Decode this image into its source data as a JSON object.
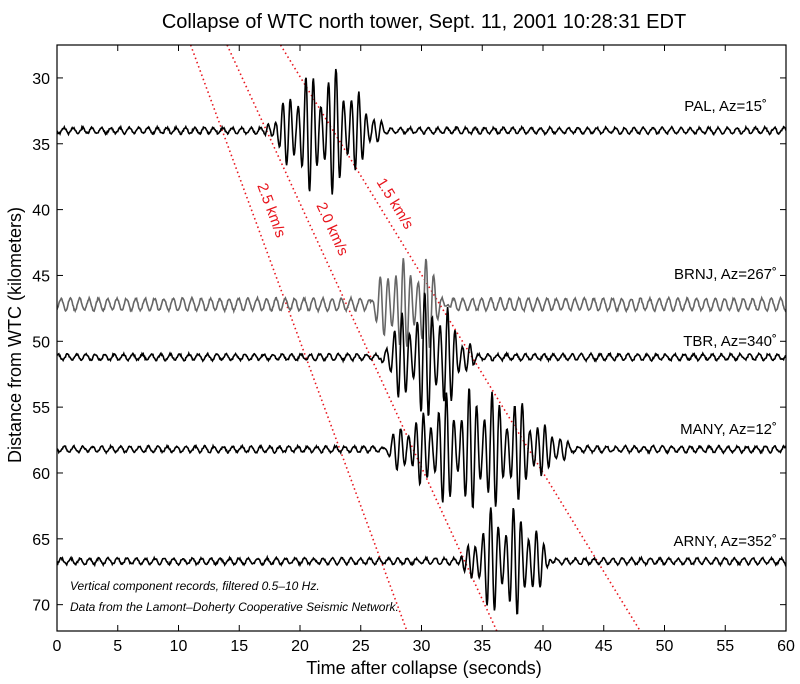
{
  "chart_data": {
    "type": "line",
    "title": "Collapse of WTC north tower, Sept. 11, 2001 10:28:31 EDT",
    "xlabel": "Time after collapse (seconds)",
    "ylabel": "Distance from WTC (kilometers)",
    "xlim": [
      0,
      60
    ],
    "ylim": [
      72,
      27.5
    ],
    "y_inverted": true,
    "grid": false,
    "xticks": [
      0,
      5,
      10,
      15,
      20,
      25,
      30,
      35,
      40,
      45,
      50,
      55,
      60
    ],
    "yticks": [
      30,
      35,
      40,
      45,
      50,
      55,
      60,
      65,
      70
    ],
    "traces": [
      {
        "label": "PAL, Az=15˚",
        "station": "PAL",
        "azimuth_deg": 15,
        "distance_km": 34.0,
        "color": "#000000",
        "arrival_s": 17.0,
        "duration_s": 10.0,
        "peak_km": 5.0
      },
      {
        "label": "BRNJ, Az=267˚",
        "station": "BRNJ",
        "azimuth_deg": 267,
        "distance_km": 47.2,
        "color": "#666666",
        "arrival_s": 25.5,
        "duration_s": 7.0,
        "peak_km": 4.0
      },
      {
        "label": "TBR, Az=340˚",
        "station": "TBR",
        "azimuth_deg": 340,
        "distance_km": 51.2,
        "color": "#000000",
        "arrival_s": 26.5,
        "duration_s": 8.0,
        "peak_km": 5.0
      },
      {
        "label": "MANY, Az=12˚",
        "station": "MANY",
        "azimuth_deg": 12,
        "distance_km": 58.2,
        "color": "#000000",
        "arrival_s": 26.5,
        "duration_s": 16.0,
        "peak_km": 4.8
      },
      {
        "label": "ARNY, Az=352˚",
        "station": "ARNY",
        "azimuth_deg": 352,
        "distance_km": 66.7,
        "color": "#000000",
        "arrival_s": 33.0,
        "duration_s": 8.0,
        "peak_km": 4.5
      }
    ],
    "velocity_lines": [
      {
        "label": "2.5 km/s",
        "speed_km_s": 2.5,
        "x_at_top": 11.0,
        "x_at_bottom": 28.8,
        "color": "#e8141c"
      },
      {
        "label": "2.0 km/s",
        "speed_km_s": 2.0,
        "x_at_top": 14.0,
        "x_at_bottom": 36.2,
        "color": "#e8141c"
      },
      {
        "label": "1.5 km/s",
        "speed_km_s": 1.5,
        "x_at_top": 18.4,
        "x_at_bottom": 48.0,
        "color": "#e8141c"
      }
    ],
    "annotations": [
      "Vertical component records, filtered 0.5–10 Hz.",
      "Data from the Lamont–Doherty Cooperative Seismic Network."
    ]
  }
}
